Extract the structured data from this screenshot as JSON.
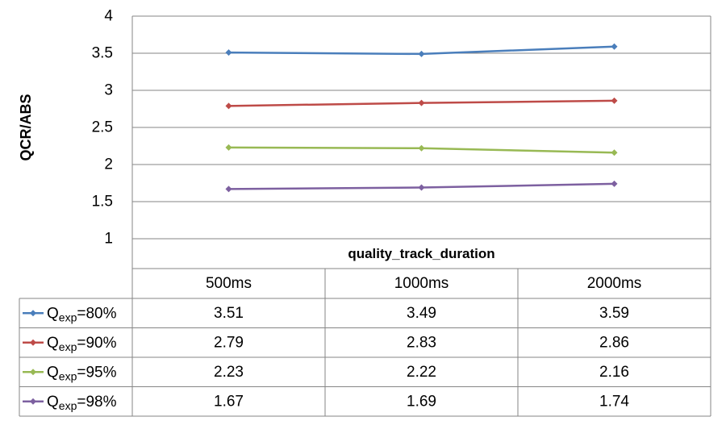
{
  "chart_data": {
    "type": "line",
    "ylabel": "QCR/ABS",
    "xlabel": "quality_track_duration",
    "categories": [
      "500ms",
      "1000ms",
      "2000ms"
    ],
    "ylim": [
      1,
      4
    ],
    "yticks": [
      "1",
      "1.5",
      "2",
      "2.5",
      "3",
      "3.5",
      "4"
    ],
    "grid": true,
    "legend": "data-table-left",
    "series": [
      {
        "name": "Qexp=80%",
        "prefix": "Q",
        "sub": "exp",
        "suffix": "=80%",
        "color": "#4a7ebb",
        "values": [
          3.51,
          3.49,
          3.59
        ],
        "labels": [
          "3.51",
          "3.49",
          "3.59"
        ]
      },
      {
        "name": "Qexp=90%",
        "prefix": "Q",
        "sub": "exp",
        "suffix": "=90%",
        "color": "#be4b48",
        "values": [
          2.79,
          2.83,
          2.86
        ],
        "labels": [
          "2.79",
          "2.83",
          "2.86"
        ]
      },
      {
        "name": "Qexp=95%",
        "prefix": "Q",
        "sub": "exp",
        "suffix": "=95%",
        "color": "#98b954",
        "values": [
          2.23,
          2.22,
          2.16
        ],
        "labels": [
          "2.23",
          "2.22",
          "2.16"
        ]
      },
      {
        "name": "Qexp=98%",
        "prefix": "Q",
        "sub": "exp",
        "suffix": "=98%",
        "color": "#7d60a0",
        "values": [
          1.67,
          1.69,
          1.74
        ],
        "labels": [
          "1.67",
          "1.69",
          "1.74"
        ]
      }
    ]
  }
}
